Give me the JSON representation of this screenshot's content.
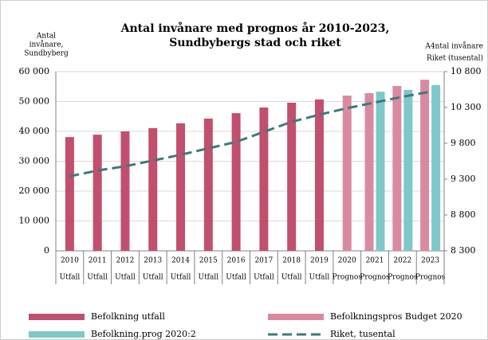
{
  "chart_data": {
    "type": "bar_line",
    "title": [
      "Antal invånare med prognos år 2010-2023,",
      "Sundbybergs stad och riket"
    ],
    "y_label": [
      "Antal",
      "invånare,",
      "Sundbyberg"
    ],
    "y2_label": [
      "A4ntal invånare",
      "Riket (tusental)"
    ],
    "categories": [
      "2010",
      "2011",
      "2012",
      "2013",
      "2014",
      "2015",
      "2016",
      "2017",
      "2018",
      "2019",
      "2020",
      "2021",
      "2022",
      "2023"
    ],
    "sub_categories": [
      "Utfall",
      "Utfall",
      "Utfall",
      "Utfall",
      "Utfall",
      "Utfall",
      "Utfall",
      "Utfall",
      "Utfall",
      "Utfall",
      "Prognos",
      "Prognos",
      "Prognos",
      "Prognos"
    ],
    "series": [
      {
        "name": "Befolkning utfall",
        "color": "#c0506e",
        "kind": "bar",
        "values": [
          38100,
          38900,
          40000,
          41100,
          42700,
          44300,
          46100,
          48000,
          49600,
          50700,
          null,
          null,
          null,
          null
        ]
      },
      {
        "name": "Befolkningspros Budget 2020",
        "color": "#d98aa0",
        "kind": "bar",
        "values": [
          null,
          null,
          null,
          null,
          null,
          null,
          null,
          null,
          null,
          null,
          52000,
          52800,
          55200,
          57300
        ]
      },
      {
        "name": "Befolkning.prog 2020:2",
        "color": "#7ec8c8",
        "kind": "bar",
        "values": [
          null,
          null,
          null,
          null,
          null,
          null,
          null,
          null,
          null,
          null,
          null,
          53300,
          53900,
          55500
        ]
      },
      {
        "name": "Riket, tusental",
        "color": "#3d7a7a",
        "kind": "line",
        "axis": "y2",
        "values": [
          9340,
          9420,
          9480,
          9560,
          9640,
          9730,
          9820,
          9960,
          10100,
          10200,
          10290,
          10370,
          10450,
          10520
        ]
      }
    ],
    "ylim": [
      0,
      60000
    ],
    "yticks": [
      0,
      {
        "value": 10000,
        "label": "10 000"
      },
      {
        "value": 20000,
        "label": "20 000"
      },
      {
        "value": 30000,
        "label": "30 000"
      },
      {
        "value": 40000,
        "label": "40 000"
      },
      {
        "value": 50000,
        "label": "50 000"
      },
      {
        "value": 60000,
        "label": "60 000"
      }
    ],
    "y2lim": [
      8300,
      10800
    ],
    "y2ticks": [
      {
        "value": 8300,
        "label": "8 300"
      },
      {
        "value": 8800,
        "label": "8 800"
      },
      {
        "value": 9300,
        "label": "9 300"
      },
      {
        "value": 9800,
        "label": "9 800"
      },
      {
        "value": 10300,
        "label": "10 300"
      },
      {
        "value": 10800,
        "label": "10 800"
      }
    ],
    "grid": true
  }
}
